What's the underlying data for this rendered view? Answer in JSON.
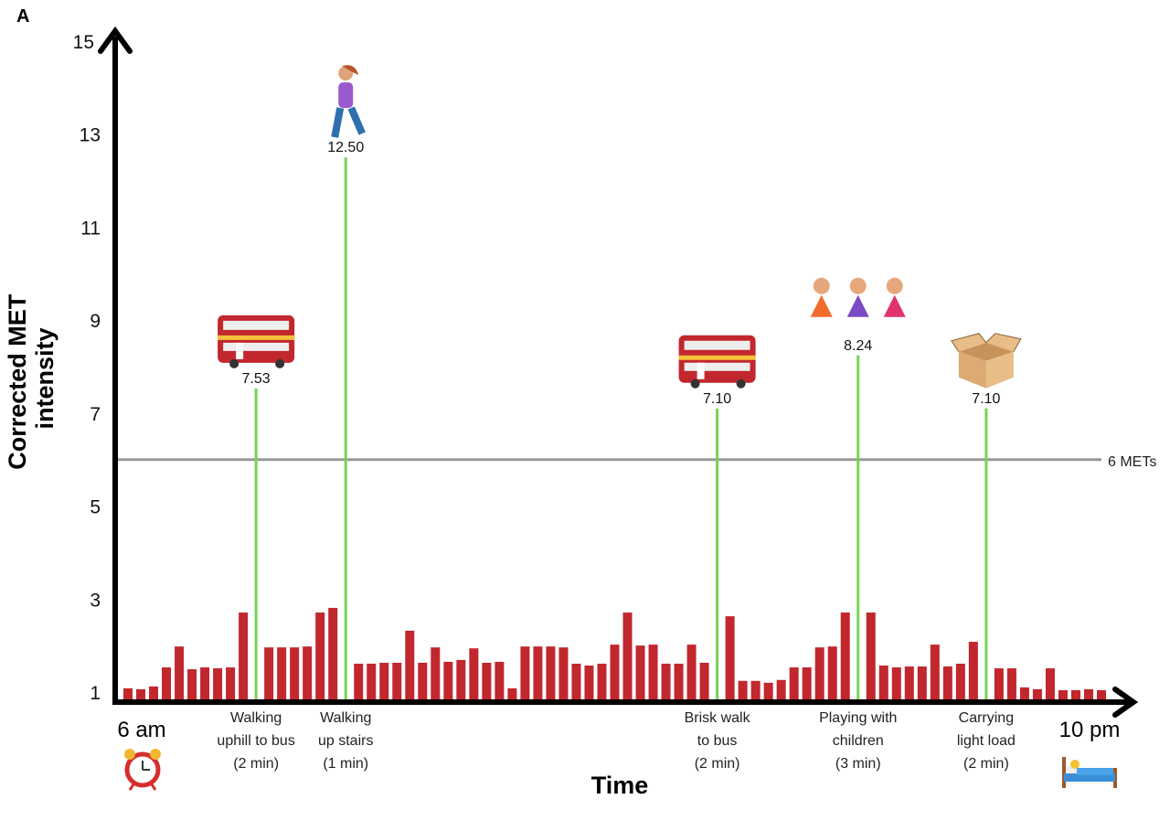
{
  "panel_label": "A",
  "chart_data": {
    "type": "bar",
    "title": "",
    "xlabel": "Time",
    "ylabel": "Corrected MET intensity",
    "ylim": [
      1,
      15
    ],
    "yticks": [
      "1",
      "3",
      "5",
      "7",
      "9",
      "11",
      "13",
      "15"
    ],
    "x_start_label": "6 am",
    "x_end_label": "10 pm",
    "threshold": {
      "value": 6,
      "label": "6 METs",
      "color": "#999999"
    },
    "bar_color": "#c1272d",
    "event_line_color": "#77d353",
    "values": [
      1.08,
      1.06,
      1.12,
      1.53,
      1.98,
      1.49,
      1.53,
      1.51,
      1.53,
      2.71,
      1.96,
      1.96,
      1.96,
      1.98,
      2.71,
      2.81,
      1.61,
      1.61,
      1.63,
      1.63,
      2.32,
      1.63,
      1.96,
      1.65,
      1.69,
      1.94,
      1.63,
      1.65,
      1.08,
      1.98,
      1.98,
      1.98,
      1.96,
      1.61,
      1.57,
      1.61,
      2.02,
      2.71,
      2.0,
      2.02,
      1.61,
      1.61,
      2.02,
      1.63,
      2.63,
      1.24,
      1.24,
      1.2,
      1.26,
      1.53,
      1.53,
      1.96,
      1.98,
      2.71,
      2.71,
      1.57,
      1.53,
      1.55,
      1.55,
      2.02,
      1.55,
      1.61,
      2.08,
      1.51,
      1.51,
      1.1,
      1.06,
      1.51,
      1.04,
      1.04,
      1.06,
      1.04
    ],
    "events": [
      {
        "after_bar": 10,
        "value": 7.53,
        "value_label": "7.53",
        "label": [
          "Walking",
          "uphill to bus",
          "(2 min)"
        ],
        "icon": "bus-icon"
      },
      {
        "after_bar": 16,
        "value": 12.5,
        "value_label": "12.50",
        "label": [
          "Walking",
          "up stairs",
          "(1 min)"
        ],
        "icon": "walking-person-icon"
      },
      {
        "after_bar": 44,
        "value": 7.1,
        "value_label": "7.10",
        "label": [
          "Brisk walk",
          "to bus",
          "(2 min)"
        ],
        "icon": "bus-icon"
      },
      {
        "after_bar": 54,
        "value": 8.24,
        "value_label": "8.24",
        "label": [
          "Playing with",
          "children",
          "(3 min)"
        ],
        "icon": "children-playing-icon"
      },
      {
        "after_bar": 63,
        "value": 7.1,
        "value_label": "7.10",
        "label": [
          "Carrying",
          "light load",
          "(2 min)"
        ],
        "icon": "cardboard-box-icon"
      }
    ],
    "start_icon": "alarm-clock-icon",
    "end_icon": "bed-icon",
    "grid": false
  }
}
